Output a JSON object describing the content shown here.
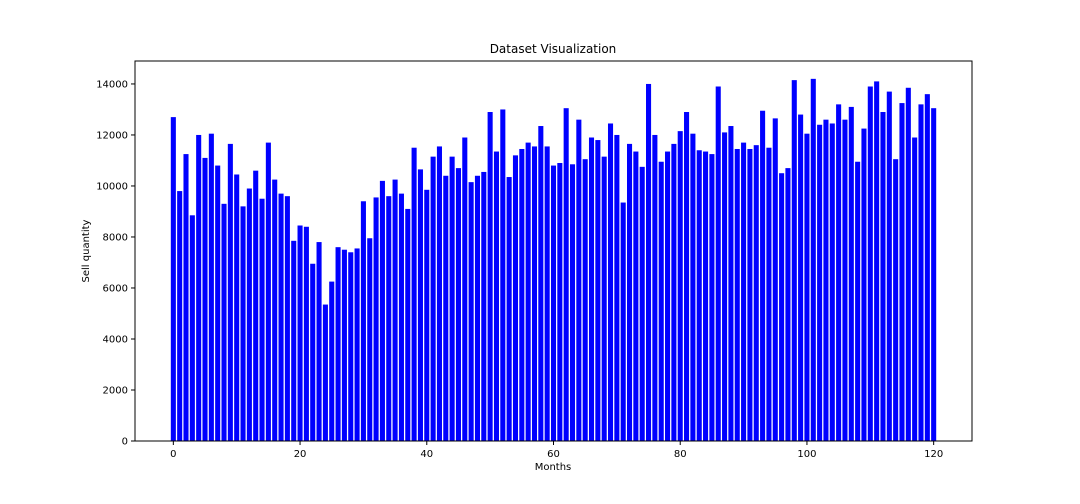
{
  "chart_data": {
    "type": "bar",
    "title": "Dataset Visualization",
    "xlabel": "Months",
    "ylabel": "Sell quantity",
    "bar_color": "#0000ff",
    "grid": false,
    "xlim": [
      -6.05,
      126.05
    ],
    "ylim": [
      0,
      14900
    ],
    "xticks": [
      0,
      20,
      40,
      60,
      80,
      100,
      120
    ],
    "yticks": [
      0,
      2000,
      4000,
      6000,
      8000,
      10000,
      12000,
      14000
    ],
    "x": [
      0,
      1,
      2,
      3,
      4,
      5,
      6,
      7,
      8,
      9,
      10,
      11,
      12,
      13,
      14,
      15,
      16,
      17,
      18,
      19,
      20,
      21,
      22,
      23,
      24,
      25,
      26,
      27,
      28,
      29,
      30,
      31,
      32,
      33,
      34,
      35,
      36,
      37,
      38,
      39,
      40,
      41,
      42,
      43,
      44,
      45,
      46,
      47,
      48,
      49,
      50,
      51,
      52,
      53,
      54,
      55,
      56,
      57,
      58,
      59,
      60,
      61,
      62,
      63,
      64,
      65,
      66,
      67,
      68,
      69,
      70,
      71,
      72,
      73,
      74,
      75,
      76,
      77,
      78,
      79,
      80,
      81,
      82,
      83,
      84,
      85,
      86,
      87,
      88,
      89,
      90,
      91,
      92,
      93,
      94,
      95,
      96,
      97,
      98,
      99,
      100,
      101,
      102,
      103,
      104,
      105,
      106,
      107,
      108,
      109,
      110,
      111,
      112,
      113,
      114,
      115,
      116,
      117,
      118,
      119,
      120
    ],
    "values": [
      12700,
      9800,
      11250,
      8850,
      12000,
      11100,
      12050,
      10800,
      9300,
      11650,
      10450,
      9200,
      9900,
      10600,
      9500,
      11700,
      10250,
      9700,
      9600,
      7850,
      8450,
      8400,
      6950,
      7800,
      5350,
      6250,
      7600,
      7500,
      7400,
      7550,
      9400,
      7950,
      9550,
      10200,
      9600,
      10250,
      9700,
      9100,
      11500,
      10650,
      9850,
      11150,
      11550,
      10400,
      11150,
      10700,
      11900,
      10150,
      10400,
      10550,
      12900,
      11350,
      13000,
      10350,
      11200,
      11450,
      11700,
      11550,
      12350,
      11550,
      10800,
      10900,
      13050,
      10850,
      12600,
      11050,
      11900,
      11800,
      11150,
      12450,
      12000,
      9350,
      11650,
      11350,
      10750,
      14000,
      12000,
      10950,
      11350,
      11650,
      12150,
      12900,
      12050,
      11400,
      11350,
      11250,
      13900,
      12100,
      12350,
      11450,
      11700,
      11450,
      11600,
      12950,
      11500,
      12650,
      10500,
      10700,
      14150,
      12800,
      12050,
      14200,
      12400,
      12600,
      12450,
      13200,
      12600,
      13100,
      10950,
      12250,
      13900,
      14100,
      12900,
      13700,
      11050,
      13250,
      13850,
      11900,
      13200,
      13600,
      13050
    ]
  }
}
